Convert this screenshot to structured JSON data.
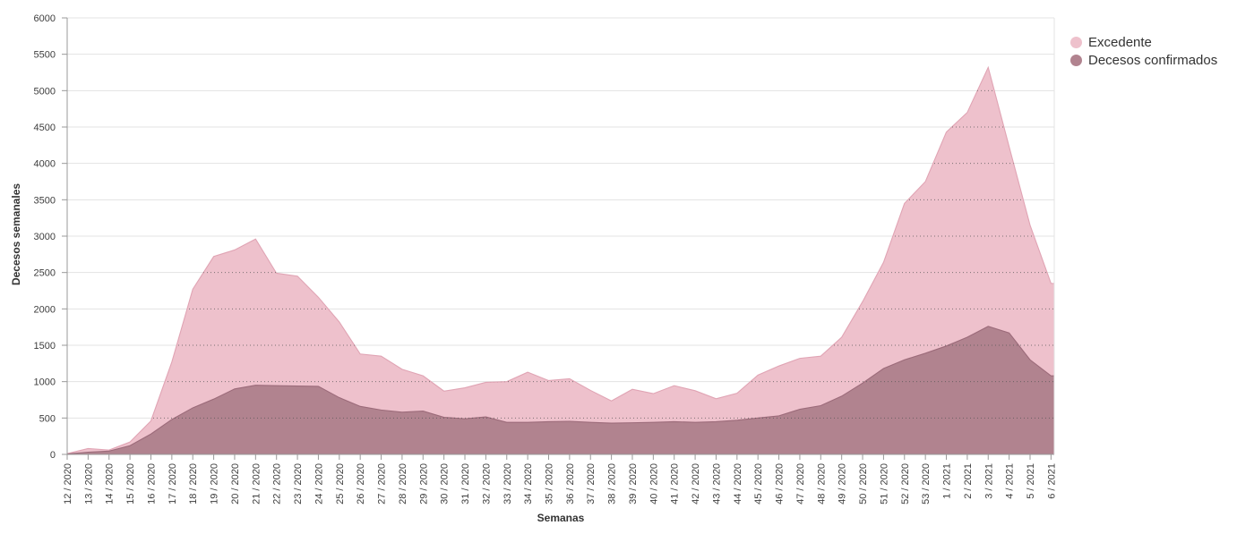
{
  "chart_data": {
    "type": "area",
    "title": "",
    "xlabel": "Semanas",
    "ylabel": "Decesos semanales",
    "ylim": [
      0,
      6000
    ],
    "ytick_step": 500,
    "grid": "horizontal",
    "legend_position": "top-right",
    "categories": [
      "12 / 2020",
      "13 / 2020",
      "14 / 2020",
      "15 / 2020",
      "16 / 2020",
      "17 / 2020",
      "18 / 2020",
      "19 / 2020",
      "20 / 2020",
      "21 / 2020",
      "22 / 2020",
      "23 / 2020",
      "24 / 2020",
      "25 / 2020",
      "26 / 2020",
      "27 / 2020",
      "28 / 2020",
      "29 / 2020",
      "30 / 2020",
      "31 / 2020",
      "32 / 2020",
      "33 / 2020",
      "34 / 2020",
      "35 / 2020",
      "36 / 2020",
      "37 / 2020",
      "38 / 2020",
      "39 / 2020",
      "40 / 2020",
      "41 / 2020",
      "42 / 2020",
      "43 / 2020",
      "44 / 2020",
      "45 / 2020",
      "46 / 2020",
      "47 / 2020",
      "48 / 2020",
      "49 / 2020",
      "50 / 2020",
      "51 / 2020",
      "52 / 2020",
      "53 / 2020",
      "1 / 2021",
      "2 / 2021",
      "3 / 2021",
      "4 / 2021",
      "5 / 2021",
      "6 / 2021"
    ],
    "series": [
      {
        "name": "Excedente",
        "color": "#eec1cc",
        "edge": "#e0a4b4",
        "values": [
          10,
          80,
          60,
          170,
          460,
          1270,
          2270,
          2720,
          2810,
          2960,
          2490,
          2450,
          2160,
          1820,
          1380,
          1350,
          1170,
          1080,
          870,
          915,
          990,
          1000,
          1130,
          1015,
          1040,
          880,
          735,
          895,
          835,
          945,
          875,
          765,
          840,
          1090,
          1215,
          1320,
          1350,
          1610,
          2100,
          2640,
          3450,
          3750,
          4430,
          4700,
          5320,
          4230,
          3150,
          2350
        ]
      },
      {
        "name": "Decesos confirmados",
        "color": "#b1838f",
        "edge": "#9c6b7a",
        "values": [
          5,
          30,
          45,
          120,
          280,
          480,
          640,
          760,
          900,
          950,
          945,
          940,
          935,
          780,
          660,
          610,
          580,
          595,
          510,
          490,
          515,
          440,
          440,
          450,
          455,
          440,
          430,
          435,
          440,
          450,
          440,
          450,
          470,
          500,
          530,
          620,
          670,
          800,
          980,
          1180,
          1300,
          1390,
          1490,
          1610,
          1760,
          1670,
          1300,
          1080
        ]
      }
    ],
    "colors": {
      "grid_solid": "#e3e3e3",
      "grid_dotted": "#555555",
      "axis": "#999999",
      "text": "#3d3d3d"
    }
  }
}
